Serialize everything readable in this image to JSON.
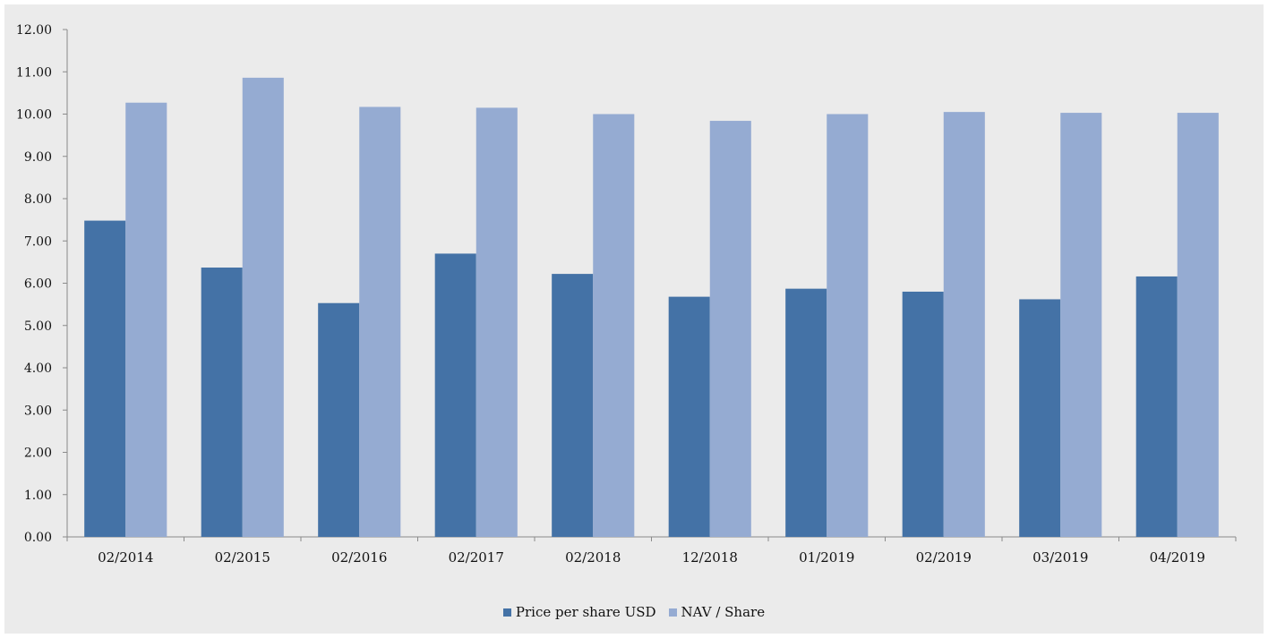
{
  "chart_data": {
    "type": "bar",
    "categories": [
      "02/2014",
      "02/2015",
      "02/2016",
      "02/2017",
      "02/2018",
      "12/2018",
      "01/2019",
      "02/2019",
      "03/2019",
      "04/2019"
    ],
    "series": [
      {
        "name": "Price per share USD",
        "color": "#4472a6",
        "values": [
          7.48,
          6.37,
          5.53,
          6.7,
          6.22,
          5.68,
          5.87,
          5.8,
          5.62,
          6.16
        ]
      },
      {
        "name": "NAV / Share",
        "color": "#95abd2",
        "values": [
          10.27,
          10.86,
          10.17,
          10.15,
          10.0,
          9.84,
          10.0,
          10.05,
          10.03,
          10.03
        ]
      }
    ],
    "ylim": [
      0,
      12
    ],
    "yticks": [
      "0.00",
      "1.00",
      "2.00",
      "3.00",
      "4.00",
      "5.00",
      "6.00",
      "7.00",
      "8.00",
      "9.00",
      "10.00",
      "11.00",
      "12.00"
    ],
    "grid": false,
    "legend": "bottom"
  }
}
